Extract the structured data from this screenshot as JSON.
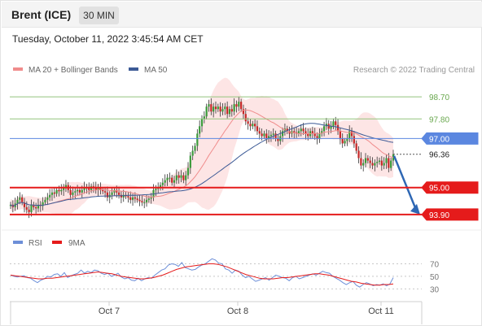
{
  "header": {
    "title": "Brent (ICE)",
    "timeframe": "30 MIN",
    "timestamp": "Tuesday, October 11, 2022 3:45:54 AM CET"
  },
  "legend": {
    "ma20": "MA 20 + Bollinger Bands",
    "ma50": "MA 50",
    "credit": "Research © 2022 Trading Central"
  },
  "colors": {
    "ma20": "#f08c8c",
    "ma50": "#3c5a96",
    "band_fill": "#fde0e0",
    "green_level": "#93c47d",
    "blue_level": "#5b87e0",
    "red_level": "#e51b1b",
    "arrow": "#2e67b4",
    "rsi": "#6d8fd8",
    "rsi_ma": "#e51b1b"
  },
  "chart_data": [
    {
      "type": "candlestick",
      "title": "Brent (ICE)",
      "xlabel": "",
      "ylabel": "",
      "x_ticks": [
        "Oct 7",
        "Oct 8",
        "Oct 11"
      ],
      "ylim": [
        93.4,
        99.3
      ],
      "series": [
        {
          "name": "MA 20 + Bollinger Bands"
        },
        {
          "name": "MA 50"
        }
      ],
      "levels": [
        {
          "value": 98.7,
          "label": "98.70",
          "color": "green_level",
          "style": "text"
        },
        {
          "value": 97.8,
          "label": "97.80",
          "color": "green_level",
          "style": "text"
        },
        {
          "value": 97.0,
          "label": "97.00",
          "color": "blue_level",
          "style": "box"
        },
        {
          "value": 96.36,
          "label": "96.36",
          "color": "last",
          "style": "last"
        },
        {
          "value": 95.0,
          "label": "95.00",
          "color": "red_level",
          "style": "box"
        },
        {
          "value": 93.9,
          "label": "93.90",
          "color": "red_level",
          "style": "box"
        }
      ],
      "closes": [
        94.3,
        94.2,
        94.35,
        94.5,
        94.6,
        94.4,
        94.2,
        94.1,
        94.0,
        94.3,
        94.2,
        94.15,
        94.3,
        94.25,
        94.4,
        94.5,
        94.6,
        94.7,
        94.8,
        94.75,
        94.9,
        94.85,
        94.9,
        95.0,
        95.1,
        94.9,
        94.7,
        94.8,
        94.85,
        94.9,
        94.8,
        94.9,
        95.0,
        95.0,
        94.9,
        95.05,
        95.0,
        94.9,
        95.0,
        94.9,
        94.85,
        94.8,
        94.6,
        94.7,
        94.8,
        94.9,
        94.8,
        94.7,
        94.6,
        94.7,
        94.65,
        94.6,
        94.5,
        94.6,
        94.55,
        94.5,
        94.45,
        94.4,
        94.4,
        94.5,
        94.55,
        94.6,
        94.9,
        94.95,
        95.0,
        95.1,
        95.2,
        95.3,
        95.4,
        95.4,
        95.2,
        95.3,
        95.5,
        95.4,
        95.5,
        95.3,
        95.5,
        95.8,
        96.3,
        96.5,
        96.7,
        97.2,
        97.5,
        97.8,
        97.9,
        98.3,
        98.4,
        98.1,
        98.3,
        98.2,
        98.3,
        98.1,
        98.2,
        98.3,
        98.0,
        98.2,
        98.1,
        98.4,
        98.3,
        98.5,
        98.2,
        98.0,
        97.7,
        97.6,
        97.5,
        97.6,
        97.5,
        97.3,
        97.2,
        97.1,
        97.2,
        97.0,
        97.1,
        97.15,
        97.2,
        97.0,
        96.9,
        97.1,
        97.3,
        97.4,
        97.3,
        97.2,
        97.3,
        97.25,
        97.2,
        97.3,
        97.4,
        97.3,
        97.2,
        97.1,
        97.3,
        97.2,
        97.1,
        97.0,
        97.2,
        97.3,
        97.5,
        97.6,
        97.4,
        97.5,
        97.7,
        97.55,
        97.3,
        97.0,
        96.8,
        96.9,
        97.0,
        97.3,
        97.1,
        96.8,
        96.5,
        96.2,
        95.9,
        96.0,
        96.2,
        96.1,
        96.0,
        95.9,
        96.0,
        96.05,
        96.1,
        95.9,
        96.0,
        96.2,
        95.8,
        96.1,
        96.36
      ],
      "arrow": {
        "from": 96.36,
        "to": 93.9
      }
    },
    {
      "type": "line",
      "title": "RSI",
      "series": [
        {
          "name": "RSI",
          "values": [
            52,
            50,
            49,
            50,
            51,
            48,
            47,
            43,
            40,
            44,
            46,
            50,
            49,
            53,
            54,
            50,
            56,
            48,
            51,
            53,
            55,
            60,
            55,
            58,
            56,
            60,
            59,
            55,
            53,
            55,
            50,
            52,
            55,
            49,
            46,
            48,
            44,
            43,
            47,
            43,
            46,
            48,
            47,
            52,
            56,
            60,
            62,
            68,
            70,
            69,
            66,
            72,
            64,
            62,
            60,
            61,
            65,
            68,
            70,
            74,
            78,
            76,
            71,
            70,
            62,
            60,
            55,
            60,
            58,
            52,
            48,
            50,
            46,
            42,
            44,
            46,
            48,
            44,
            48,
            52,
            50,
            48,
            47,
            43,
            48,
            50,
            46,
            48,
            50,
            52,
            54,
            52,
            55,
            58,
            56,
            55,
            50,
            47,
            44,
            40,
            37,
            40,
            42,
            36,
            33,
            37,
            40,
            38,
            35,
            37,
            36,
            38,
            35,
            38,
            48
          ]
        },
        {
          "name": "9MA",
          "values": [
            52,
            51,
            50,
            49,
            48,
            47,
            46,
            46,
            47,
            47,
            48,
            49,
            50,
            51,
            52,
            53,
            54,
            55,
            56,
            57,
            56,
            55,
            54,
            52,
            50,
            49,
            48,
            47,
            46,
            46,
            47,
            48,
            50,
            52,
            55,
            58,
            61,
            63,
            65,
            66,
            67,
            68,
            69,
            70,
            70,
            69,
            67,
            65,
            62,
            59,
            56,
            53,
            51,
            49,
            47,
            46,
            46,
            46,
            47,
            48,
            48,
            49,
            50,
            51,
            52,
            53,
            54,
            54,
            53,
            52,
            50,
            48,
            46,
            44,
            42,
            41,
            39,
            38,
            37,
            36,
            36,
            37,
            37,
            38
          ]
        }
      ],
      "y_ticks": [
        70,
        50,
        30
      ],
      "ylim": [
        15,
        90
      ],
      "x_ticks": [
        "Oct 7",
        "Oct 8",
        "Oct 11"
      ]
    }
  ]
}
